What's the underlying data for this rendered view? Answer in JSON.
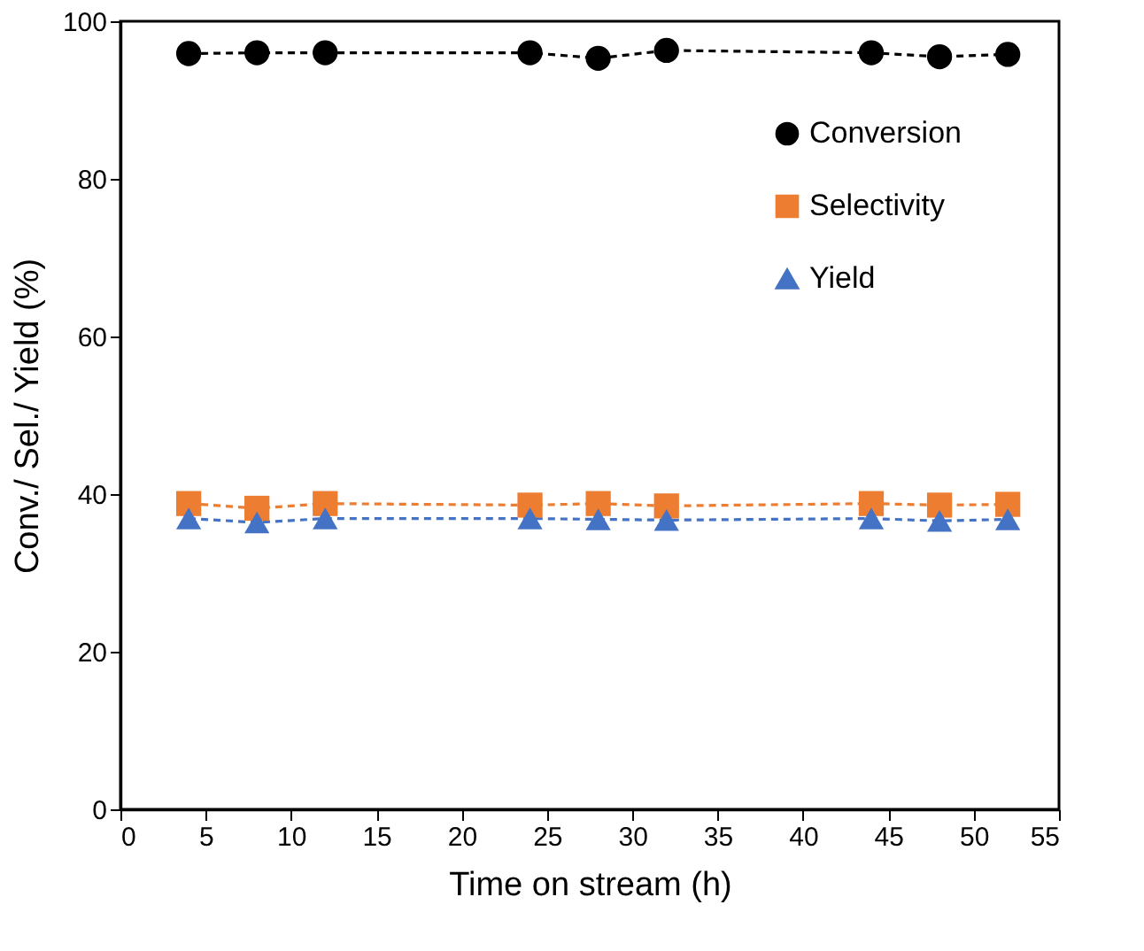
{
  "chart_data": {
    "type": "line",
    "xlabel": "Time on stream (h)",
    "ylabel": "Conv./ Sel./ Yield (%)",
    "x": [
      4,
      8,
      12,
      24,
      28,
      32,
      44,
      48,
      52
    ],
    "series": [
      {
        "name": "Conversion",
        "color": "#000000",
        "marker": "circle",
        "values": [
          95.9,
          96.0,
          96.0,
          96.0,
          95.3,
          96.3,
          96.0,
          95.5,
          95.8
        ]
      },
      {
        "name": "Selectivity",
        "color": "#ed7d31",
        "marker": "square",
        "values": [
          38.8,
          38.2,
          38.8,
          38.6,
          38.8,
          38.5,
          38.8,
          38.6,
          38.7
        ]
      },
      {
        "name": "Yield",
        "color": "#4472c4",
        "marker": "triangle",
        "values": [
          36.9,
          36.4,
          36.9,
          36.9,
          36.8,
          36.7,
          36.9,
          36.6,
          36.8
        ]
      }
    ],
    "xlim": [
      0,
      55
    ],
    "xticks": [
      0,
      5,
      10,
      15,
      20,
      25,
      30,
      35,
      40,
      45,
      50,
      55
    ],
    "ylim": [
      0,
      100
    ],
    "yticks": [
      0,
      20,
      40,
      60,
      80,
      100
    ],
    "grid": false,
    "legend": "top right",
    "line_style": "dashed"
  }
}
